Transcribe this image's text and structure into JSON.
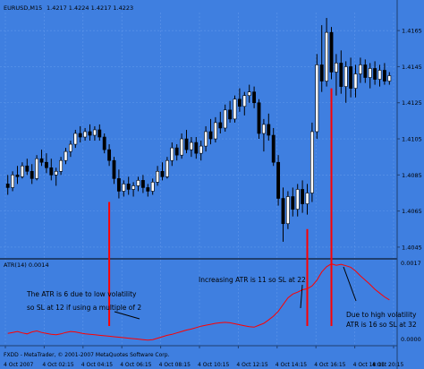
{
  "chart": {
    "header": {
      "symbol": "EURUSD,M15",
      "prices": "1.4217 1.4224 1.4217 1.4223"
    },
    "price_axis": {
      "ticks": [
        "1.4165",
        "1.4145",
        "1.4125",
        "1.4105",
        "1.4085",
        "1.4065",
        "1.4045"
      ]
    },
    "indicator": {
      "label": "ATR(14) 0.0014",
      "top_value": "0.0017",
      "bottom_value": "0.0000"
    },
    "annotations": {
      "left_line1": "The ATR is 6 due to low volatility",
      "left_line2": "so SL at 12 if using a multiple of 2",
      "mid": "Increasing ATR is 11 so SL at 22",
      "right_line1": "Due to high volatility",
      "right_line2": "ATR is 16 so SL at 32"
    },
    "footer": {
      "broker": "FXDD - MetaTrader, © 2001-2007 MetaQuotes Software Corp."
    },
    "time_axis": {
      "ticks": [
        "4 Oct 2007",
        "4 Oct 02:15",
        "4 Oct 04:15",
        "4 Oct 06:15",
        "4 Oct 08:15",
        "4 Oct 10:15",
        "4 Oct 12:15",
        "4 Oct 14:15",
        "4 Oct 16:15",
        "4 Oct 18:15",
        "4 Oct 20:15"
      ]
    },
    "colors": {
      "background": "#3f7fe0",
      "grid": "#5f97ea",
      "candle_up": "#ffffff",
      "candle_down": "#000000",
      "atr_line": "#ff0000",
      "marker_line": "#ff0000"
    }
  },
  "chart_data": {
    "type": "candlestick",
    "title": "EURUSD,M15",
    "ylim": [
      1.404,
      1.4175
    ],
    "ohlc": [
      [
        1.408,
        1.4085,
        1.4074,
        1.4078
      ],
      [
        1.4078,
        1.4087,
        1.4076,
        1.4085
      ],
      [
        1.4085,
        1.409,
        1.408,
        1.4084
      ],
      [
        1.4084,
        1.4092,
        1.4083,
        1.409
      ],
      [
        1.409,
        1.4094,
        1.4085,
        1.4087
      ],
      [
        1.4087,
        1.4091,
        1.408,
        1.4083
      ],
      [
        1.4083,
        1.4096,
        1.4082,
        1.4094
      ],
      [
        1.4094,
        1.4099,
        1.409,
        1.4092
      ],
      [
        1.4092,
        1.4097,
        1.4086,
        1.4089
      ],
      [
        1.4089,
        1.4094,
        1.4082,
        1.4085
      ],
      [
        1.4085,
        1.4089,
        1.4079,
        1.4087
      ],
      [
        1.4087,
        1.4095,
        1.4085,
        1.4093
      ],
      [
        1.4093,
        1.41,
        1.4091,
        1.4098
      ],
      [
        1.4098,
        1.4104,
        1.4095,
        1.4102
      ],
      [
        1.4102,
        1.411,
        1.41,
        1.4108
      ],
      [
        1.4108,
        1.4112,
        1.4103,
        1.4106
      ],
      [
        1.4106,
        1.4111,
        1.4104,
        1.4109
      ],
      [
        1.4109,
        1.4113,
        1.4104,
        1.4107
      ],
      [
        1.4107,
        1.4112,
        1.4104,
        1.411
      ],
      [
        1.411,
        1.4113,
        1.4104,
        1.4106
      ],
      [
        1.4106,
        1.4108,
        1.4097,
        1.4099
      ],
      [
        1.4099,
        1.4102,
        1.409,
        1.4093
      ],
      [
        1.4093,
        1.4095,
        1.408,
        1.4083
      ],
      [
        1.4083,
        1.4088,
        1.4072,
        1.4076
      ],
      [
        1.4076,
        1.4082,
        1.4073,
        1.408
      ],
      [
        1.408,
        1.4084,
        1.4074,
        1.4077
      ],
      [
        1.4077,
        1.4081,
        1.4073,
        1.4079
      ],
      [
        1.4079,
        1.4084,
        1.4076,
        1.4082
      ],
      [
        1.4082,
        1.4085,
        1.4075,
        1.4078
      ],
      [
        1.4078,
        1.408,
        1.4073,
        1.4076
      ],
      [
        1.4076,
        1.4083,
        1.4074,
        1.4081
      ],
      [
        1.4081,
        1.409,
        1.4079,
        1.4087
      ],
      [
        1.4087,
        1.4092,
        1.4082,
        1.4084
      ],
      [
        1.4084,
        1.4095,
        1.4083,
        1.4093
      ],
      [
        1.4093,
        1.4103,
        1.409,
        1.41
      ],
      [
        1.41,
        1.4102,
        1.4093,
        1.4096
      ],
      [
        1.4096,
        1.4108,
        1.4094,
        1.4105
      ],
      [
        1.4105,
        1.411,
        1.4097,
        1.4099
      ],
      [
        1.4099,
        1.4106,
        1.4095,
        1.4103
      ],
      [
        1.4103,
        1.4106,
        1.4094,
        1.4097
      ],
      [
        1.4097,
        1.4104,
        1.4093,
        1.4101
      ],
      [
        1.4101,
        1.4112,
        1.4098,
        1.4109
      ],
      [
        1.4109,
        1.4116,
        1.4102,
        1.4105
      ],
      [
        1.4105,
        1.4117,
        1.4103,
        1.4114
      ],
      [
        1.4114,
        1.412,
        1.4108,
        1.4111
      ],
      [
        1.4111,
        1.4124,
        1.4109,
        1.4121
      ],
      [
        1.4121,
        1.4126,
        1.4114,
        1.4116
      ],
      [
        1.4116,
        1.4129,
        1.4114,
        1.4127
      ],
      [
        1.4127,
        1.4133,
        1.412,
        1.4123
      ],
      [
        1.4123,
        1.4131,
        1.4118,
        1.4129
      ],
      [
        1.4129,
        1.4135,
        1.4125,
        1.4131
      ],
      [
        1.4131,
        1.4134,
        1.4122,
        1.4125
      ],
      [
        1.4125,
        1.4127,
        1.4105,
        1.4108
      ],
      [
        1.4108,
        1.4116,
        1.4098,
        1.4113
      ],
      [
        1.4113,
        1.4119,
        1.4104,
        1.4107
      ],
      [
        1.4107,
        1.4111,
        1.409,
        1.4092
      ],
      [
        1.4092,
        1.4096,
        1.4068,
        1.4072
      ],
      [
        1.4072,
        1.4078,
        1.4048,
        1.4058
      ],
      [
        1.4058,
        1.4076,
        1.4055,
        1.4073
      ],
      [
        1.4073,
        1.4078,
        1.4062,
        1.4066
      ],
      [
        1.4066,
        1.408,
        1.4062,
        1.4077
      ],
      [
        1.4077,
        1.4082,
        1.4064,
        1.4069
      ],
      [
        1.4069,
        1.408,
        1.4063,
        1.4075
      ],
      [
        1.4075,
        1.4114,
        1.407,
        1.4109
      ],
      [
        1.4109,
        1.4152,
        1.4105,
        1.4146
      ],
      [
        1.4146,
        1.4168,
        1.4131,
        1.4137
      ],
      [
        1.4137,
        1.4172,
        1.4134,
        1.4164
      ],
      [
        1.4164,
        1.4167,
        1.4138,
        1.4142
      ],
      [
        1.4142,
        1.4152,
        1.4129,
        1.4147
      ],
      [
        1.4147,
        1.4154,
        1.413,
        1.4134
      ],
      [
        1.4134,
        1.4148,
        1.4125,
        1.4145
      ],
      [
        1.4145,
        1.415,
        1.4128,
        1.4133
      ],
      [
        1.4133,
        1.4146,
        1.4128,
        1.4141
      ],
      [
        1.4141,
        1.415,
        1.4136,
        1.4146
      ],
      [
        1.4146,
        1.4149,
        1.4136,
        1.4139
      ],
      [
        1.4139,
        1.4147,
        1.4133,
        1.4144
      ],
      [
        1.4144,
        1.4148,
        1.4135,
        1.4138
      ],
      [
        1.4138,
        1.4146,
        1.4134,
        1.4143
      ],
      [
        1.4143,
        1.4147,
        1.4135,
        1.4137
      ],
      [
        1.4137,
        1.4142,
        1.4135,
        1.414
      ]
    ],
    "atr": {
      "ylim": [
        0.0,
        0.0017
      ],
      "values": [
        0.00022,
        0.00024,
        0.00026,
        0.00023,
        0.00021,
        0.00025,
        0.00027,
        0.00024,
        0.00022,
        0.0002,
        0.00019,
        0.00021,
        0.00024,
        0.00026,
        0.00025,
        0.00023,
        0.00021,
        0.0002,
        0.00019,
        0.00018,
        0.00017,
        0.00016,
        0.00015,
        0.00014,
        0.00013,
        0.00012,
        0.00011,
        0.0001,
        9e-05,
        8e-05,
        9e-05,
        0.00012,
        0.00015,
        0.00018,
        0.0002,
        0.00023,
        0.00026,
        0.00029,
        0.00031,
        0.00034,
        0.00037,
        0.00039,
        0.00041,
        0.00043,
        0.00044,
        0.00045,
        0.00044,
        0.00042,
        0.0004,
        0.00038,
        0.00036,
        0.00035,
        0.00039,
        0.00043,
        0.0005,
        0.00058,
        0.00068,
        0.00082,
        0.00096,
        0.00104,
        0.00108,
        0.00113,
        0.00115,
        0.00121,
        0.00133,
        0.0015,
        0.00161,
        0.00167,
        0.00164,
        0.00166,
        0.00163,
        0.0016,
        0.00152,
        0.00142,
        0.00133,
        0.00124,
        0.00114,
        0.00106,
        0.00098,
        0.00092
      ]
    },
    "markers": [
      {
        "candle": 21,
        "price_top": 1.407,
        "label": "ATR 6"
      },
      {
        "candle": 62,
        "price_top": 1.4055,
        "label": "ATR 11"
      },
      {
        "candle": 67,
        "price_top": 1.4133,
        "label": "ATR 16"
      }
    ]
  }
}
